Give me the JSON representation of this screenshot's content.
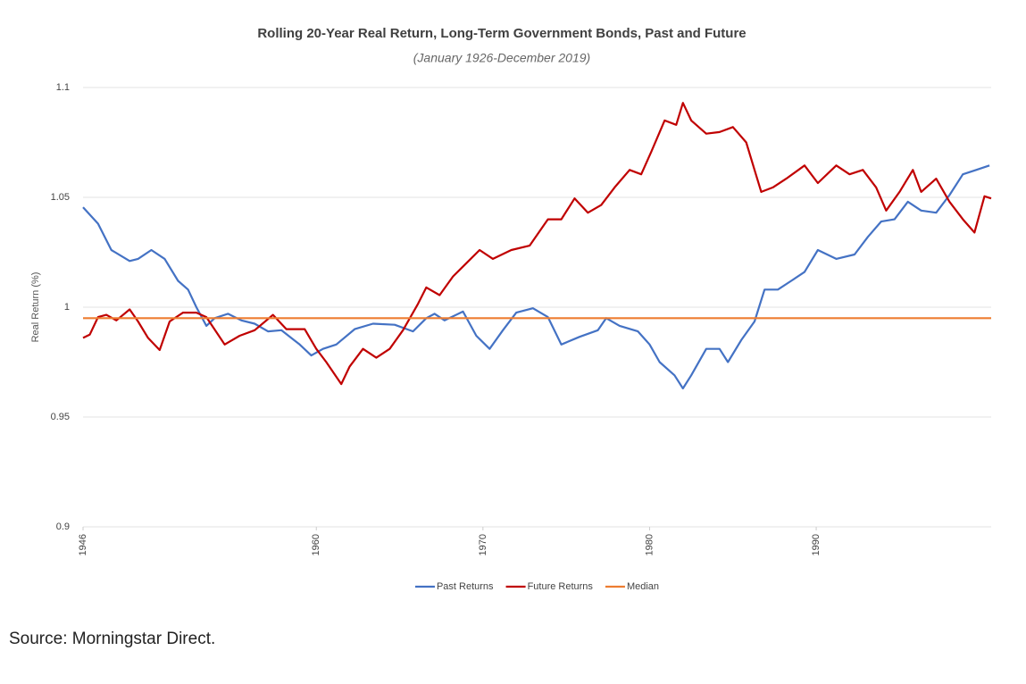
{
  "chart_data": {
    "type": "line",
    "title": "Rolling 20-Year Real Return, Long-Term Government Bonds, Past and Future",
    "subtitle": "(January 1926-December 2019)",
    "y_label": "Real Return (%)",
    "source": "Source: Morningstar Direct.",
    "xlim": [
      1946,
      2000.5
    ],
    "xticks": [
      1946,
      1960,
      1970,
      1980,
      1990
    ],
    "ylim": [
      0.9,
      1.1
    ],
    "yticks": [
      1.1,
      1.05,
      1,
      0.95,
      0.9
    ],
    "grid": true,
    "legend": "bottom",
    "series": [
      {
        "name": "Past Returns",
        "color": "#4472c4",
        "x": [
          1946,
          1946.9,
          1947.7,
          1948.8,
          1949.3,
          1950.1,
          1950.9,
          1951.7,
          1952.3,
          1952.8,
          1953.4,
          1953.9,
          1954.7,
          1955.5,
          1956.3,
          1957.1,
          1957.9,
          1959.0,
          1959.7,
          1960.4,
          1961.2,
          1962.3,
          1963.4,
          1964.7,
          1965.8,
          1966.6,
          1967.1,
          1967.7,
          1968.8,
          1969.6,
          1970.4,
          1971.2,
          1972.0,
          1973.0,
          1973.9,
          1974.7,
          1975.8,
          1976.9,
          1977.4,
          1978.2,
          1979.3,
          1980.0,
          1980.6,
          1981.5,
          1982.0,
          1982.5,
          1983.4,
          1984.2,
          1984.7,
          1985.5,
          1986.3,
          1986.9,
          1987.7,
          1988.5,
          1989.3,
          1990.1,
          1991.2,
          1992.3,
          1993.1,
          1993.9,
          1994.7,
          1995.5,
          1996.3,
          1997.2,
          1998.0,
          1998.8,
          1999.6,
          2000.4
        ],
        "values": [
          1.0455,
          1.038,
          1.026,
          1.021,
          1.022,
          1.026,
          1.022,
          1.012,
          1.008,
          1.0,
          0.9915,
          0.995,
          0.997,
          0.994,
          0.9925,
          0.989,
          0.9895,
          0.983,
          0.978,
          0.981,
          0.983,
          0.99,
          0.9925,
          0.992,
          0.989,
          0.995,
          0.997,
          0.994,
          0.998,
          0.987,
          0.981,
          0.9895,
          0.9975,
          0.9995,
          0.9955,
          0.983,
          0.9865,
          0.9895,
          0.995,
          0.9915,
          0.989,
          0.983,
          0.975,
          0.969,
          0.963,
          0.969,
          0.981,
          0.981,
          0.975,
          0.985,
          0.9935,
          1.008,
          1.008,
          1.012,
          1.016,
          1.026,
          1.022,
          1.024,
          1.032,
          1.039,
          1.04,
          1.048,
          1.044,
          1.043,
          1.051,
          1.0605,
          1.0625,
          1.0645
        ]
      },
      {
        "name": "Future Returns",
        "color": "#c00000",
        "x": [
          1946,
          1946.4,
          1946.9,
          1947.4,
          1948.0,
          1948.8,
          1949.3,
          1949.9,
          1950.6,
          1951.2,
          1952.0,
          1952.8,
          1953.4,
          1954.5,
          1955.4,
          1956.3,
          1957.4,
          1958.2,
          1959.3,
          1960.0,
          1960.6,
          1961.5,
          1962.0,
          1962.8,
          1963.6,
          1964.4,
          1965.2,
          1966.1,
          1966.6,
          1967.4,
          1968.2,
          1969.0,
          1969.8,
          1970.6,
          1971.7,
          1972.8,
          1973.9,
          1974.7,
          1975.5,
          1976.3,
          1977.1,
          1977.9,
          1978.8,
          1979.5,
          1980.1,
          1980.9,
          1981.6,
          1982.0,
          1982.5,
          1983.4,
          1984.2,
          1985.0,
          1985.8,
          1986.3,
          1986.7,
          1987.4,
          1988.2,
          1989.3,
          1990.1,
          1991.2,
          1992.0,
          1992.8,
          1993.6,
          1994.2,
          1995.0,
          1995.8,
          1996.3,
          1997.2,
          1998.0,
          1998.8,
          1999.5,
          2000.1,
          2000.5
        ],
        "values": [
          0.986,
          0.9875,
          0.9955,
          0.9965,
          0.994,
          0.999,
          0.9935,
          0.986,
          0.9805,
          0.9935,
          0.9975,
          0.9975,
          0.9955,
          0.983,
          0.987,
          0.9895,
          0.9965,
          0.99,
          0.99,
          0.981,
          0.975,
          0.965,
          0.973,
          0.981,
          0.977,
          0.981,
          0.9895,
          1.0015,
          1.009,
          1.0055,
          1.014,
          1.02,
          1.026,
          1.022,
          1.026,
          1.028,
          1.04,
          1.04,
          1.0495,
          1.043,
          1.0465,
          1.0545,
          1.0625,
          1.0605,
          1.0707,
          1.085,
          1.083,
          1.093,
          1.085,
          1.079,
          1.0797,
          1.082,
          1.075,
          1.0625,
          1.0525,
          1.0545,
          1.0585,
          1.0645,
          1.0565,
          1.0645,
          1.0605,
          1.0625,
          1.0545,
          1.044,
          1.0525,
          1.0625,
          1.0525,
          1.0585,
          1.048,
          1.04,
          1.034,
          1.0505,
          1.0495
        ]
      },
      {
        "name": "Median",
        "color": "#ed7d31",
        "x": [
          1946,
          2000.5
        ],
        "values": [
          0.995,
          0.995
        ]
      }
    ]
  }
}
